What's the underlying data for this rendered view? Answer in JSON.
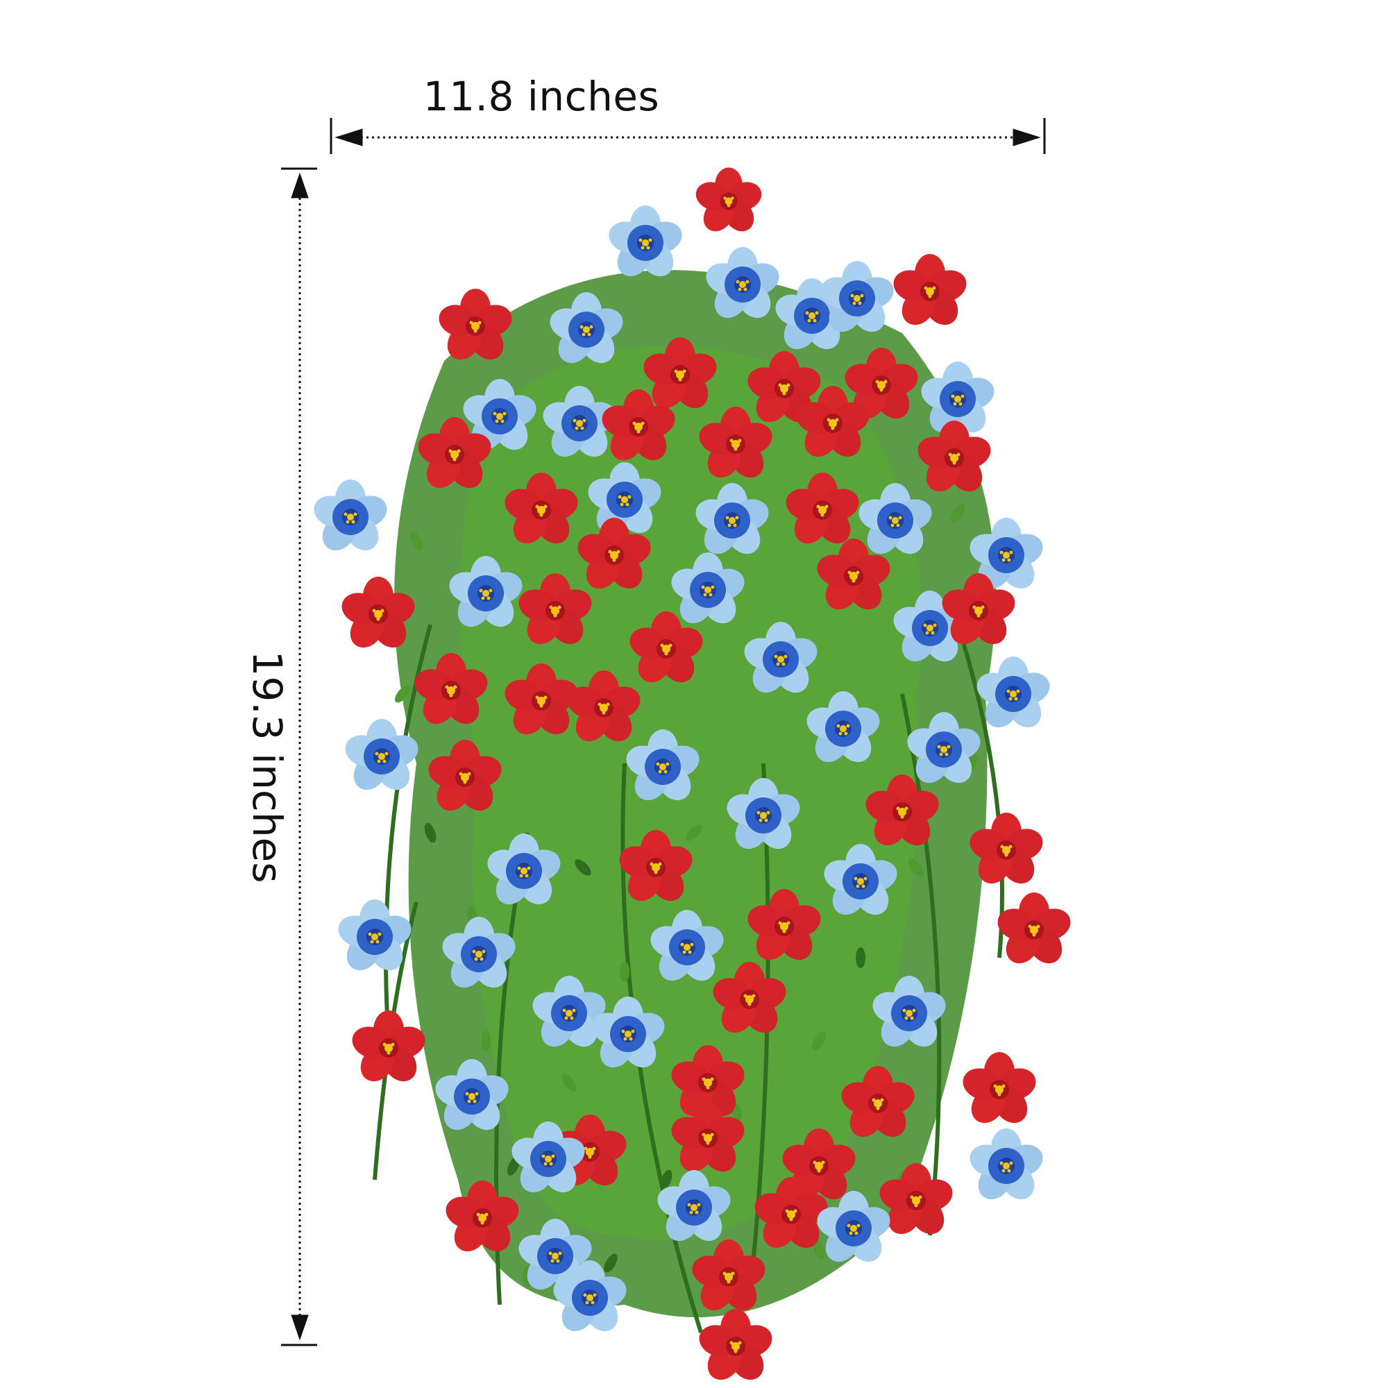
{
  "dimensions": {
    "width_label": "11.8 inches",
    "height_label": "19.3 inches"
  },
  "colors": {
    "background": "#ffffff",
    "dimension_line": "#111111",
    "flower_red": "#d8262b",
    "flower_red_dark": "#a8151c",
    "flower_blue": "#2f62c8",
    "flower_blue_light": "#a9d0ee",
    "flower_center": "#f2c418",
    "foliage": "#4f9a2e",
    "foliage_dark": "#2f6e1e"
  },
  "subject": {
    "icon": "hanging-flower-bouquet"
  }
}
